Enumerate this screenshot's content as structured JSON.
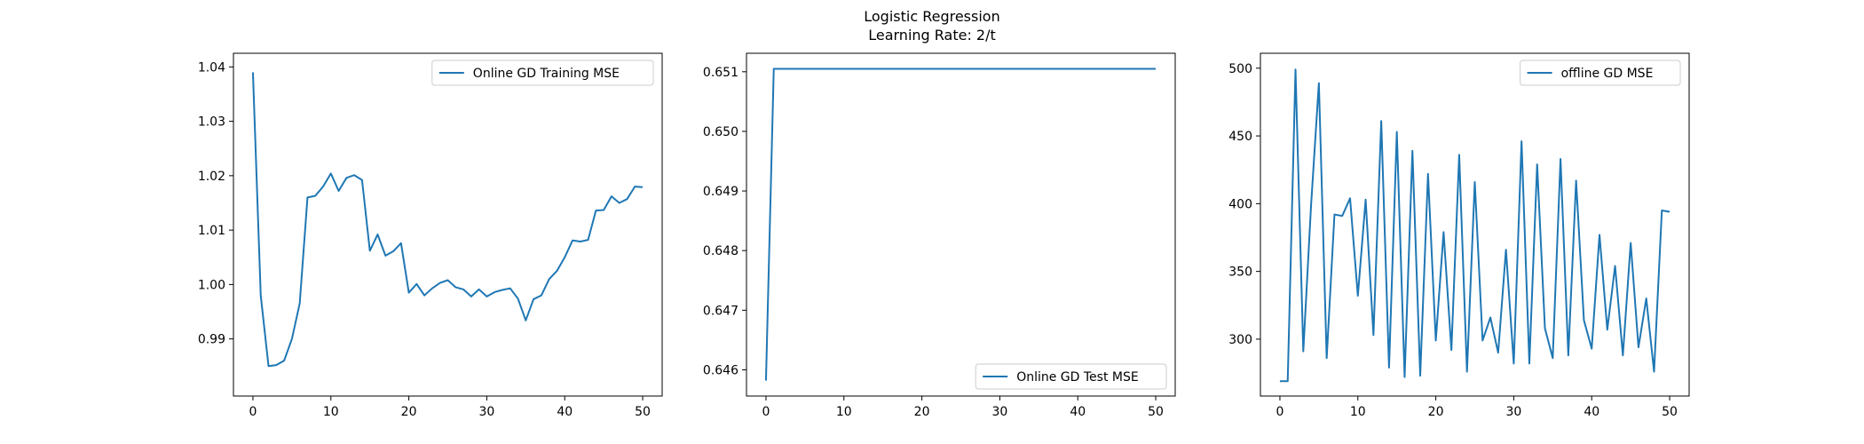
{
  "figure": {
    "title_line1": "Logistic Regression",
    "title_line2": "Learning Rate: 2/t"
  },
  "colors": {
    "line": "#1f77b4",
    "axes": "#000000",
    "legend_border": "#cccccc"
  },
  "chart_data": [
    {
      "type": "line",
      "legend_loc": "upper right",
      "grid": false,
      "xlim": [
        -2.5,
        52.5
      ],
      "ylim": [
        0.9795,
        1.0425
      ],
      "xticks": [
        0,
        10,
        20,
        30,
        40,
        50
      ],
      "yticks": [
        0.99,
        1.0,
        1.01,
        1.02,
        1.03,
        1.04
      ],
      "ytick_labels": [
        "0.99",
        "1.00",
        "1.01",
        "1.02",
        "1.03",
        "1.04"
      ],
      "series": [
        {
          "name": "Online GD Training MSE",
          "x": [
            0,
            1,
            2,
            3,
            4,
            5,
            6,
            7,
            8,
            9,
            10,
            11,
            12,
            13,
            14,
            15,
            16,
            17,
            18,
            19,
            20,
            21,
            22,
            23,
            24,
            25,
            26,
            27,
            28,
            29,
            30,
            31,
            32,
            33,
            34,
            35,
            36,
            37,
            38,
            39,
            40,
            41,
            42,
            43,
            44,
            45,
            46,
            47,
            48,
            49,
            50
          ],
          "values": [
            1.039,
            0.998,
            0.985,
            0.9852,
            0.986,
            0.99,
            0.9965,
            1.016,
            1.0163,
            1.018,
            1.0204,
            1.0172,
            1.0196,
            1.0201,
            1.0192,
            1.0062,
            1.0092,
            1.0053,
            1.0061,
            1.0076,
            0.9985,
            1.0001,
            0.998,
            0.9993,
            1.0003,
            1.0008,
            0.9995,
            0.9991,
            0.9978,
            0.9991,
            0.9978,
            0.9986,
            0.999,
            0.9993,
            0.9974,
            0.9934,
            0.9973,
            0.998,
            1.001,
            1.0025,
            1.005,
            1.0081,
            1.0079,
            1.0082,
            1.0136,
            1.0137,
            1.0162,
            1.015,
            1.0157,
            1.018,
            1.0179
          ]
        }
      ]
    },
    {
      "type": "line",
      "legend_loc": "lower right",
      "grid": false,
      "xlim": [
        -2.5,
        52.5
      ],
      "ylim": [
        0.64556,
        0.65131
      ],
      "xticks": [
        0,
        10,
        20,
        30,
        40,
        50
      ],
      "yticks": [
        0.646,
        0.647,
        0.648,
        0.649,
        0.65,
        0.651
      ],
      "ytick_labels": [
        "0.646",
        "0.647",
        "0.648",
        "0.649",
        "0.650",
        "0.651"
      ],
      "series": [
        {
          "name": "Online GD Test MSE",
          "x": [
            0,
            1,
            2,
            3,
            4,
            5,
            6,
            7,
            8,
            9,
            10,
            11,
            12,
            13,
            14,
            15,
            16,
            17,
            18,
            19,
            20,
            21,
            22,
            23,
            24,
            25,
            26,
            27,
            28,
            29,
            30,
            31,
            32,
            33,
            34,
            35,
            36,
            37,
            38,
            39,
            40,
            41,
            42,
            43,
            44,
            45,
            46,
            47,
            48,
            49,
            50
          ],
          "values": [
            0.64582,
            0.65105,
            0.65105,
            0.65105,
            0.65105,
            0.65105,
            0.65105,
            0.65105,
            0.65105,
            0.65105,
            0.65105,
            0.65105,
            0.65105,
            0.65105,
            0.65105,
            0.65105,
            0.65105,
            0.65105,
            0.65105,
            0.65105,
            0.65105,
            0.65105,
            0.65105,
            0.65105,
            0.65105,
            0.65105,
            0.65105,
            0.65105,
            0.65105,
            0.65105,
            0.65105,
            0.65105,
            0.65105,
            0.65105,
            0.65105,
            0.65105,
            0.65105,
            0.65105,
            0.65105,
            0.65105,
            0.65105,
            0.65105,
            0.65105,
            0.65105,
            0.65105,
            0.65105,
            0.65105,
            0.65105,
            0.65105,
            0.65105,
            0.65105
          ]
        }
      ]
    },
    {
      "type": "line",
      "legend_loc": "upper right",
      "grid": false,
      "xlim": [
        -2.5,
        52.5
      ],
      "ylim": [
        258,
        511
      ],
      "xticks": [
        0,
        10,
        20,
        30,
        40,
        50
      ],
      "yticks": [
        300,
        350,
        400,
        450,
        500
      ],
      "ytick_labels": [
        "300",
        "350",
        "400",
        "450",
        "500"
      ],
      "series": [
        {
          "name": "offline GD MSE",
          "x": [
            0,
            1,
            2,
            3,
            4,
            5,
            6,
            7,
            8,
            9,
            10,
            11,
            12,
            13,
            14,
            15,
            16,
            17,
            18,
            19,
            20,
            21,
            22,
            23,
            24,
            25,
            26,
            27,
            28,
            29,
            30,
            31,
            32,
            33,
            34,
            35,
            36,
            37,
            38,
            39,
            40,
            41,
            42,
            43,
            44,
            45,
            46,
            47,
            48,
            49,
            50
          ],
          "values": [
            269,
            269,
            499,
            291,
            399,
            489,
            286,
            392,
            391,
            404,
            332,
            403,
            303,
            461,
            279,
            453,
            272,
            439,
            273,
            422,
            299,
            379,
            292,
            436,
            276,
            416,
            299,
            316,
            290,
            366,
            282,
            446,
            282,
            429,
            308,
            286,
            433,
            288,
            417,
            314,
            293,
            377,
            307,
            354,
            288,
            371,
            294,
            330,
            276,
            395,
            394
          ]
        }
      ]
    }
  ]
}
